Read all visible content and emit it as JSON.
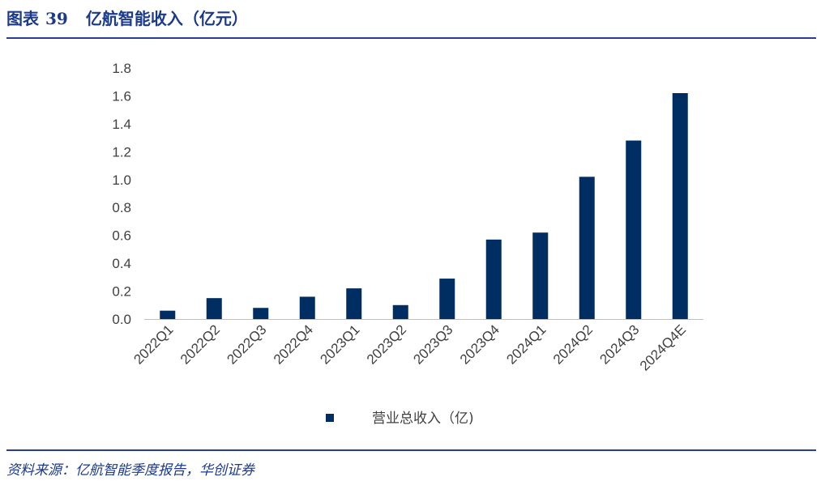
{
  "figure": {
    "label": "图表",
    "number": "39",
    "title": "亿航智能收入（亿元）",
    "source": "资料来源：亿航智能季度报告，华创证券"
  },
  "chart_data": {
    "type": "bar",
    "categories": [
      "2022Q1",
      "2022Q2",
      "2022Q3",
      "2022Q4",
      "2023Q1",
      "2023Q2",
      "2023Q3",
      "2023Q4",
      "2024Q1",
      "2024Q2",
      "2024Q3",
      "2024Q4E"
    ],
    "series": [
      {
        "name": "营业总收入（亿)",
        "values": [
          0.06,
          0.15,
          0.08,
          0.16,
          0.22,
          0.1,
          0.29,
          0.57,
          0.62,
          1.02,
          1.28,
          1.62
        ],
        "color": "#002d62"
      }
    ],
    "ylim": [
      0,
      1.8
    ],
    "yticks": [
      "0.0",
      "0.2",
      "0.4",
      "0.6",
      "0.8",
      "1.0",
      "1.2",
      "1.4",
      "1.6",
      "1.8"
    ],
    "grid": false,
    "legend_position": "bottom-center"
  }
}
